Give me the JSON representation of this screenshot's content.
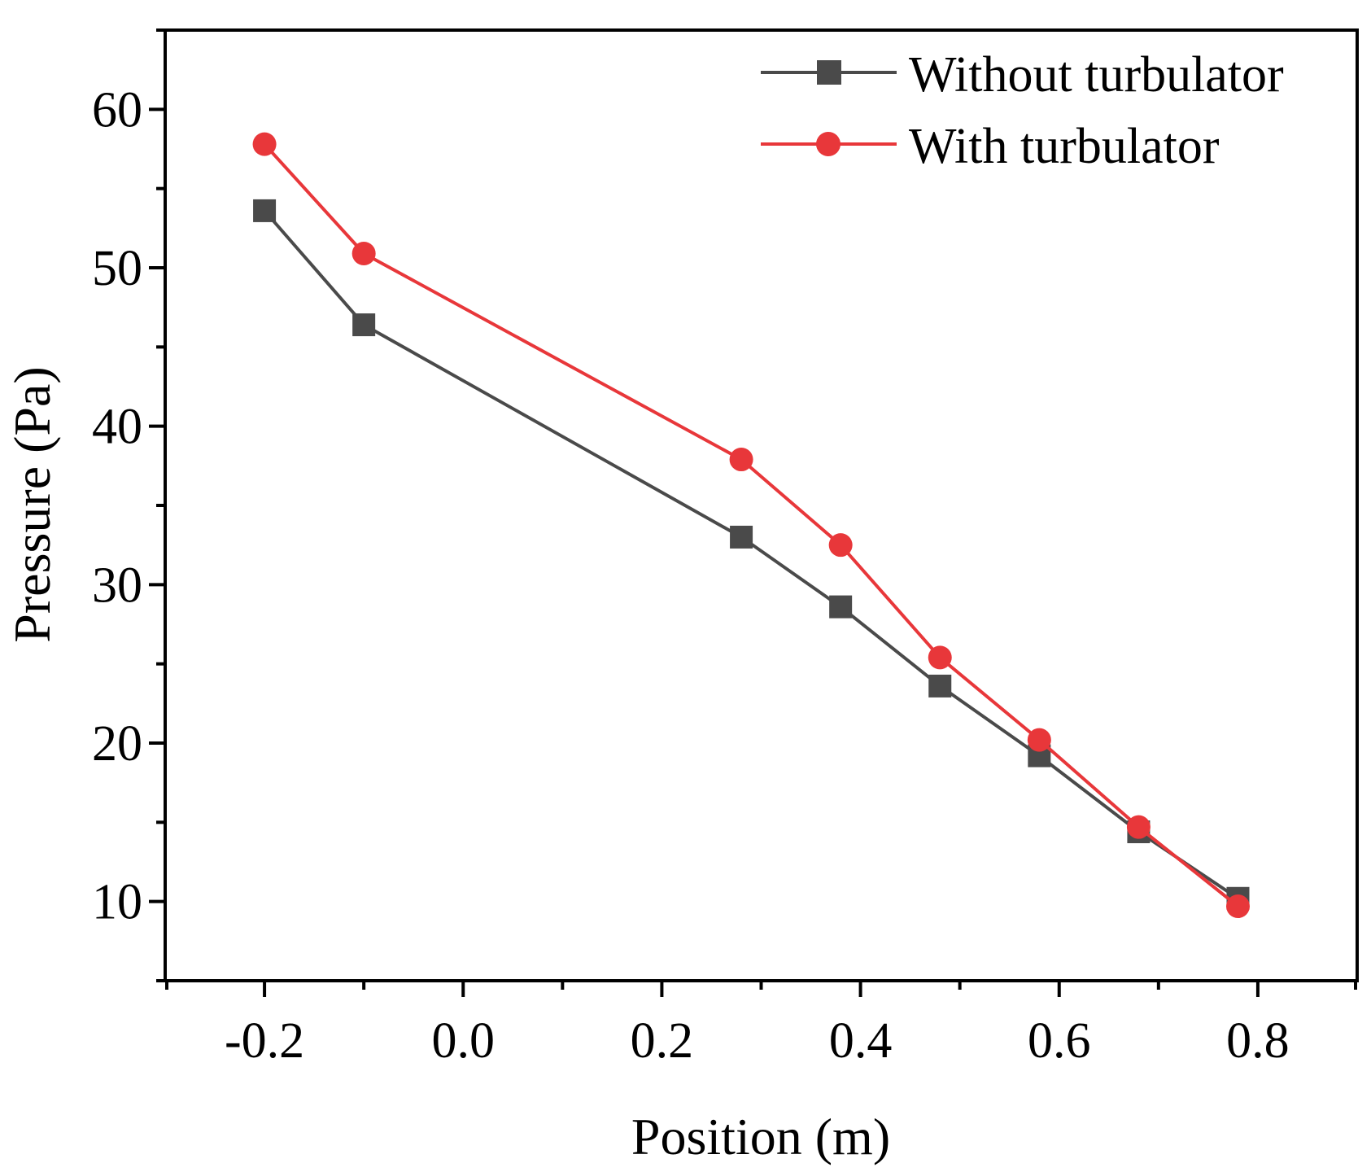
{
  "chart_data": {
    "type": "line",
    "title": "",
    "xlabel": "Position (m)",
    "ylabel": "Pressure (Pa)",
    "xlim": [
      -0.3,
      0.9
    ],
    "ylim": [
      5,
      65
    ],
    "x_ticks": [
      -0.2,
      0.0,
      0.2,
      0.4,
      0.6,
      0.8
    ],
    "x_tick_labels": [
      "-0.2",
      "0.0",
      "0.2",
      "0.4",
      "0.6",
      "0.8"
    ],
    "y_ticks": [
      10,
      20,
      30,
      40,
      50,
      60
    ],
    "y_tick_labels": [
      "10",
      "20",
      "30",
      "40",
      "50",
      "60"
    ],
    "grid": false,
    "legend_position": "top-right",
    "series": [
      {
        "name": "Without turbulator",
        "color": "#4a4a4a",
        "marker": "square",
        "x": [
          -0.2,
          -0.1,
          0.28,
          0.38,
          0.48,
          0.58,
          0.68,
          0.78
        ],
        "y": [
          53.6,
          46.4,
          33.0,
          28.6,
          23.6,
          19.2,
          14.4,
          10.2
        ]
      },
      {
        "name": "With turbulator",
        "color": "#e8373a",
        "marker": "circle",
        "x": [
          -0.2,
          -0.1,
          0.28,
          0.38,
          0.48,
          0.58,
          0.68,
          0.78
        ],
        "y": [
          57.8,
          50.9,
          37.9,
          32.5,
          25.4,
          20.2,
          14.7,
          9.7
        ]
      }
    ]
  }
}
